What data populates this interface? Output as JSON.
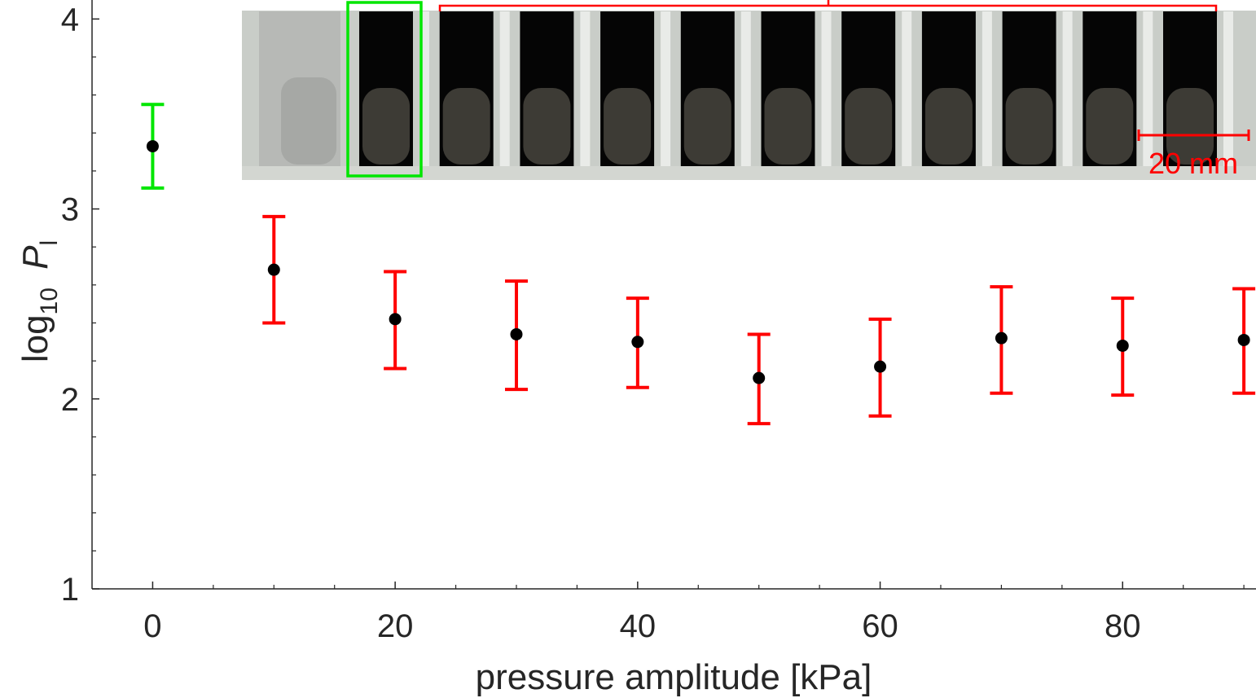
{
  "chart_data": {
    "type": "scatter",
    "title": "",
    "xlabel": "pressure amplitude [kPa]",
    "ylabel": {
      "prefix": "log",
      "subscript": "10",
      "symbol": "P",
      "symbol_subscript": "l"
    },
    "xlim": [
      -5,
      91
    ],
    "ylim": [
      1,
      4.1
    ],
    "x_ticks": [
      0,
      20,
      40,
      60,
      80
    ],
    "y_ticks": [
      1,
      2,
      3,
      4
    ],
    "grid": false,
    "series": [
      {
        "color": "#00e600",
        "points": [
          {
            "x": 0,
            "y": 3.33,
            "err_low": 3.11,
            "err_high": 3.55
          }
        ]
      },
      {
        "color": "#ff0000",
        "points": [
          {
            "x": 10,
            "y": 2.68,
            "err_low": 2.4,
            "err_high": 2.96
          },
          {
            "x": 20,
            "y": 2.42,
            "err_low": 2.16,
            "err_high": 2.67
          },
          {
            "x": 30,
            "y": 2.34,
            "err_low": 2.05,
            "err_high": 2.62
          },
          {
            "x": 40,
            "y": 2.3,
            "err_low": 2.06,
            "err_high": 2.53
          },
          {
            "x": 50,
            "y": 2.11,
            "err_low": 1.87,
            "err_high": 2.34
          },
          {
            "x": 60,
            "y": 2.17,
            "err_low": 1.91,
            "err_high": 2.42
          },
          {
            "x": 70,
            "y": 2.32,
            "err_low": 2.03,
            "err_high": 2.59
          },
          {
            "x": 80,
            "y": 2.28,
            "err_low": 2.02,
            "err_high": 2.53
          },
          {
            "x": 90,
            "y": 2.31,
            "err_low": 2.03,
            "err_high": 2.58
          }
        ]
      }
    ],
    "marker_color": "#000000",
    "inset": {
      "description_type": "photo",
      "scale_bar_label": "20 mm",
      "highlight_color": "#00e600",
      "bracket_color": "#ff0000"
    }
  }
}
